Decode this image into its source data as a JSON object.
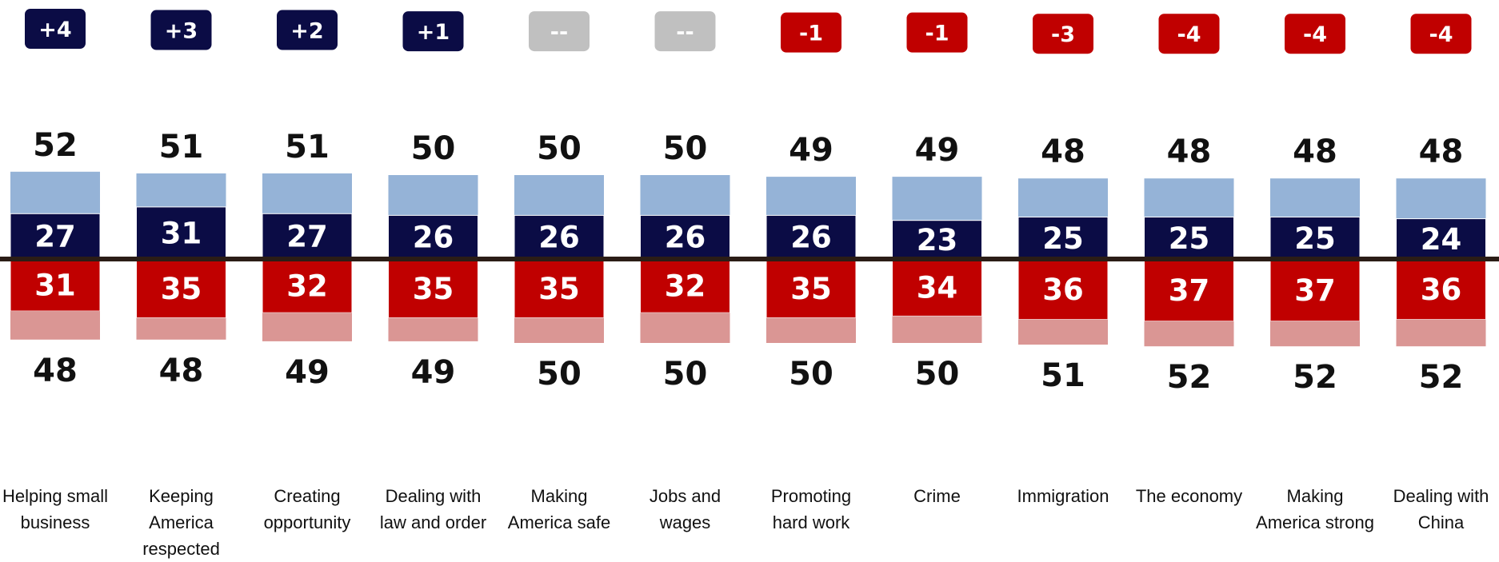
{
  "colors": {
    "net_positive_badge": "#0b0c45",
    "net_neutral_badge": "#c0c0c0",
    "net_negative_badge": "#c00000",
    "top_light": "#95b3d7",
    "top_strong": "#0b0c45",
    "bottom_strong": "#c00000",
    "bottom_light": "#da9694",
    "baseline": "#2b1d16"
  },
  "chart_data": {
    "type": "bar",
    "subtype": "diverging stacked bar",
    "categories": [
      "Helping small business",
      "Keeping America respected",
      "Creating opportunity",
      "Dealing with law and order",
      "Making America safe",
      "Jobs and wages",
      "Promoting hard work",
      "Crime",
      "Immigration",
      "The economy",
      "Making America strong",
      "Dealing with China"
    ],
    "net_labels": [
      "+4",
      "+3",
      "+2",
      "+1",
      "--",
      "--",
      "-1",
      "-1",
      "-3",
      "-4",
      "-4",
      "-4"
    ],
    "top_totals": [
      52,
      51,
      51,
      50,
      50,
      50,
      49,
      49,
      48,
      48,
      48,
      48
    ],
    "top_strong": [
      27,
      31,
      27,
      26,
      26,
      26,
      26,
      23,
      25,
      25,
      25,
      24
    ],
    "bottom_strong": [
      31,
      35,
      32,
      35,
      35,
      32,
      35,
      34,
      36,
      37,
      37,
      36
    ],
    "bottom_totals": [
      48,
      48,
      49,
      49,
      50,
      50,
      50,
      50,
      51,
      52,
      52,
      52
    ],
    "title": "",
    "xlabel": "",
    "ylabel": "",
    "legend": "none",
    "grid": false
  }
}
